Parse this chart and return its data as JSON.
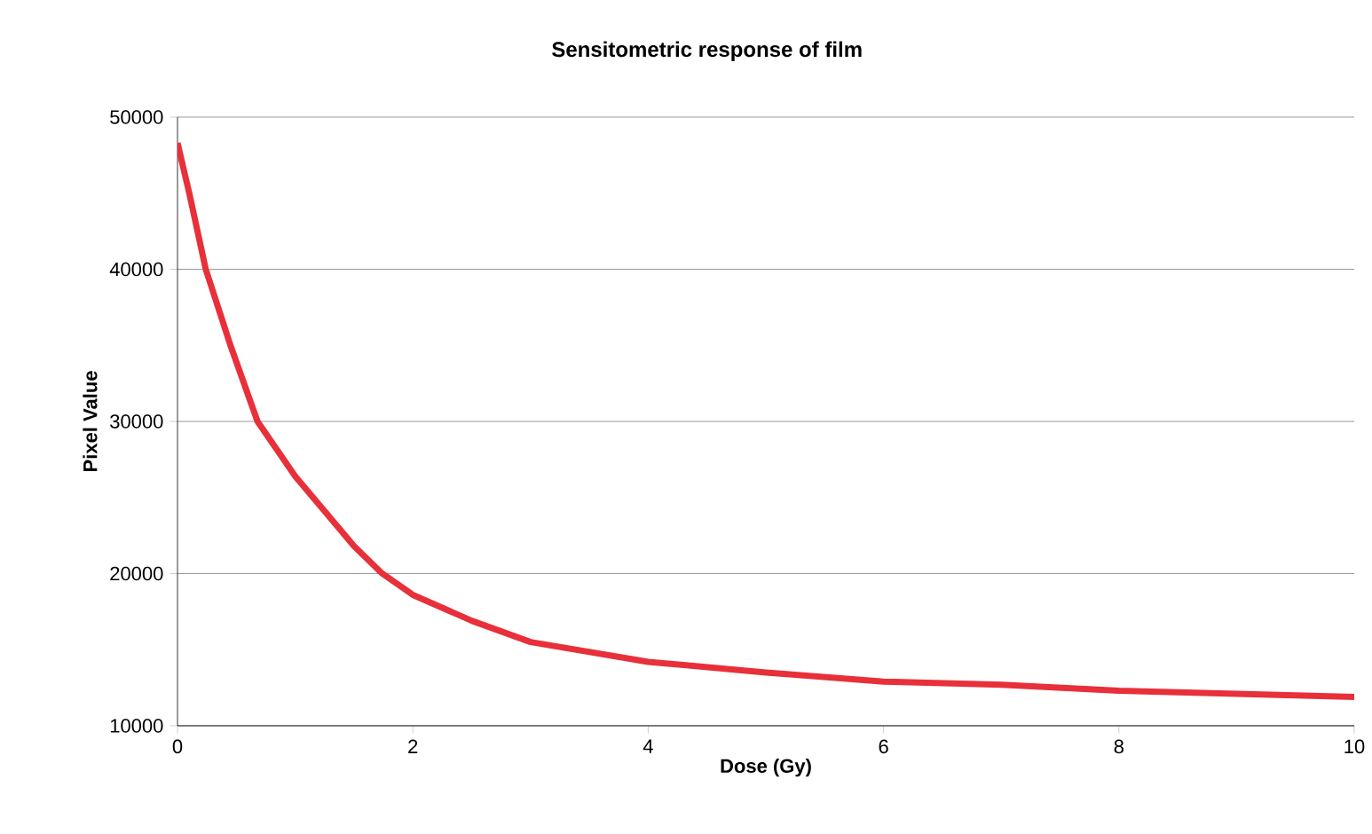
{
  "chart_data": {
    "type": "line",
    "title": "Sensitometric response of film",
    "xlabel": "Dose (Gy)",
    "ylabel": "Pixel Value",
    "x": [
      0,
      0.1,
      0.24,
      0.45,
      0.68,
      1,
      1.5,
      1.74,
      2,
      2.5,
      3,
      4,
      5,
      6,
      7,
      8,
      9,
      10
    ],
    "series": [
      {
        "color": "#e8303a",
        "values": [
          48300,
          45000,
          40000,
          35000,
          30000,
          26400,
          21800,
          20000,
          18600,
          16900,
          15500,
          14200,
          13500,
          12900,
          12700,
          12300,
          12100,
          11900
        ]
      }
    ],
    "xlim": [
      0,
      10
    ],
    "ylim": [
      10000,
      50000
    ],
    "xticks": [
      0,
      2,
      4,
      6,
      8,
      10
    ],
    "yticks": [
      10000,
      20000,
      30000,
      40000,
      50000
    ],
    "grid": "y",
    "marker": "none",
    "line_style": "solid"
  }
}
